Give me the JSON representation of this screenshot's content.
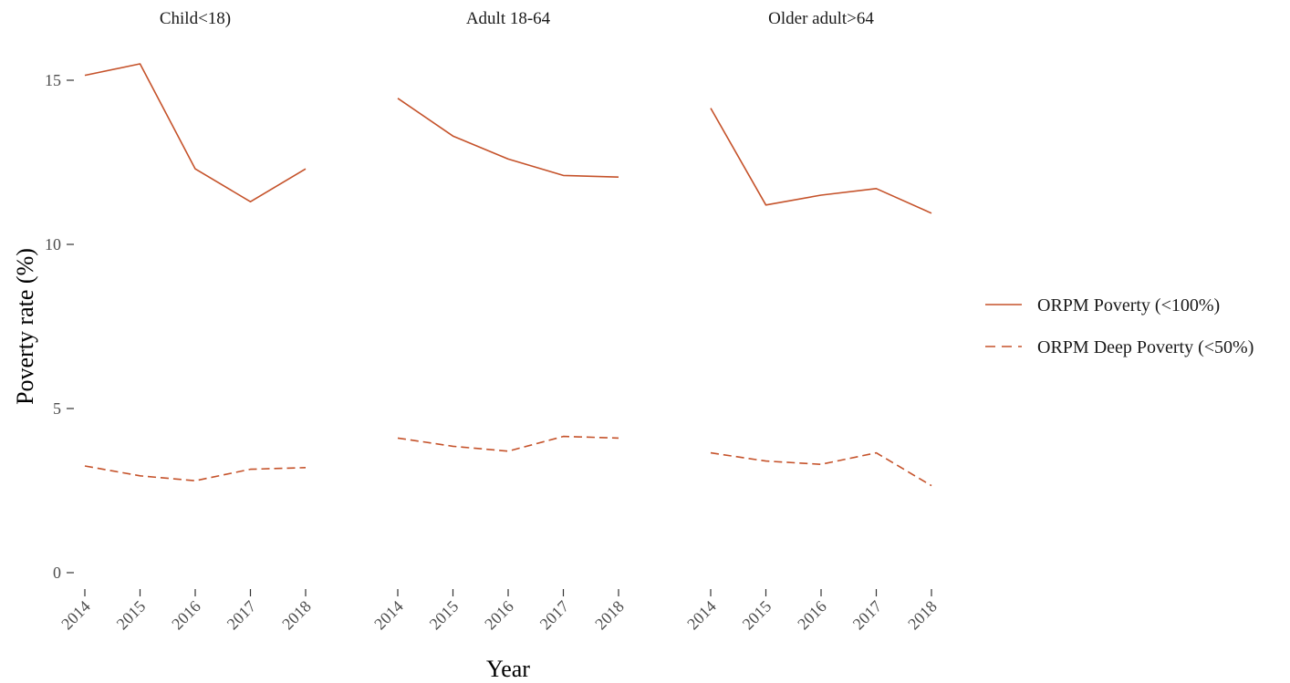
{
  "chart_data": {
    "type": "line",
    "xlabel": "Year",
    "ylabel": "Poverty rate (%)",
    "ylim": [
      0,
      15.5
    ],
    "yticks": [
      0,
      5,
      10,
      15
    ],
    "x": [
      "2014",
      "2015",
      "2016",
      "2017",
      "2018"
    ],
    "grid": false,
    "legend_position": "right",
    "line_color": "#c5522a",
    "facets": [
      {
        "title": "Child<18)",
        "series": [
          {
            "name": "ORPM Poverty (<100%)",
            "style": "solid",
            "values": [
              15.15,
              15.5,
              12.3,
              11.3,
              12.3
            ]
          },
          {
            "name": "ORPM Deep Poverty (<50%)",
            "style": "dashed",
            "values": [
              3.25,
              2.95,
              2.8,
              3.15,
              3.2
            ]
          }
        ]
      },
      {
        "title": "Adult 18-64",
        "series": [
          {
            "name": "ORPM Poverty (<100%)",
            "style": "solid",
            "values": [
              14.45,
              13.3,
              12.6,
              12.1,
              12.05
            ]
          },
          {
            "name": "ORPM Deep Poverty (<50%)",
            "style": "dashed",
            "values": [
              4.1,
              3.85,
              3.7,
              4.15,
              4.1
            ]
          }
        ]
      },
      {
        "title": "Older adult>64",
        "series": [
          {
            "name": "ORPM Poverty (<100%)",
            "style": "solid",
            "values": [
              14.15,
              11.2,
              11.5,
              11.7,
              10.95
            ]
          },
          {
            "name": "ORPM Deep Poverty (<50%)",
            "style": "dashed",
            "values": [
              3.65,
              3.4,
              3.3,
              3.65,
              2.65
            ]
          }
        ]
      }
    ],
    "legend": [
      {
        "label": "ORPM Poverty (<100%)",
        "style": "solid"
      },
      {
        "label": "ORPM Deep Poverty (<50%)",
        "style": "dashed"
      }
    ]
  }
}
